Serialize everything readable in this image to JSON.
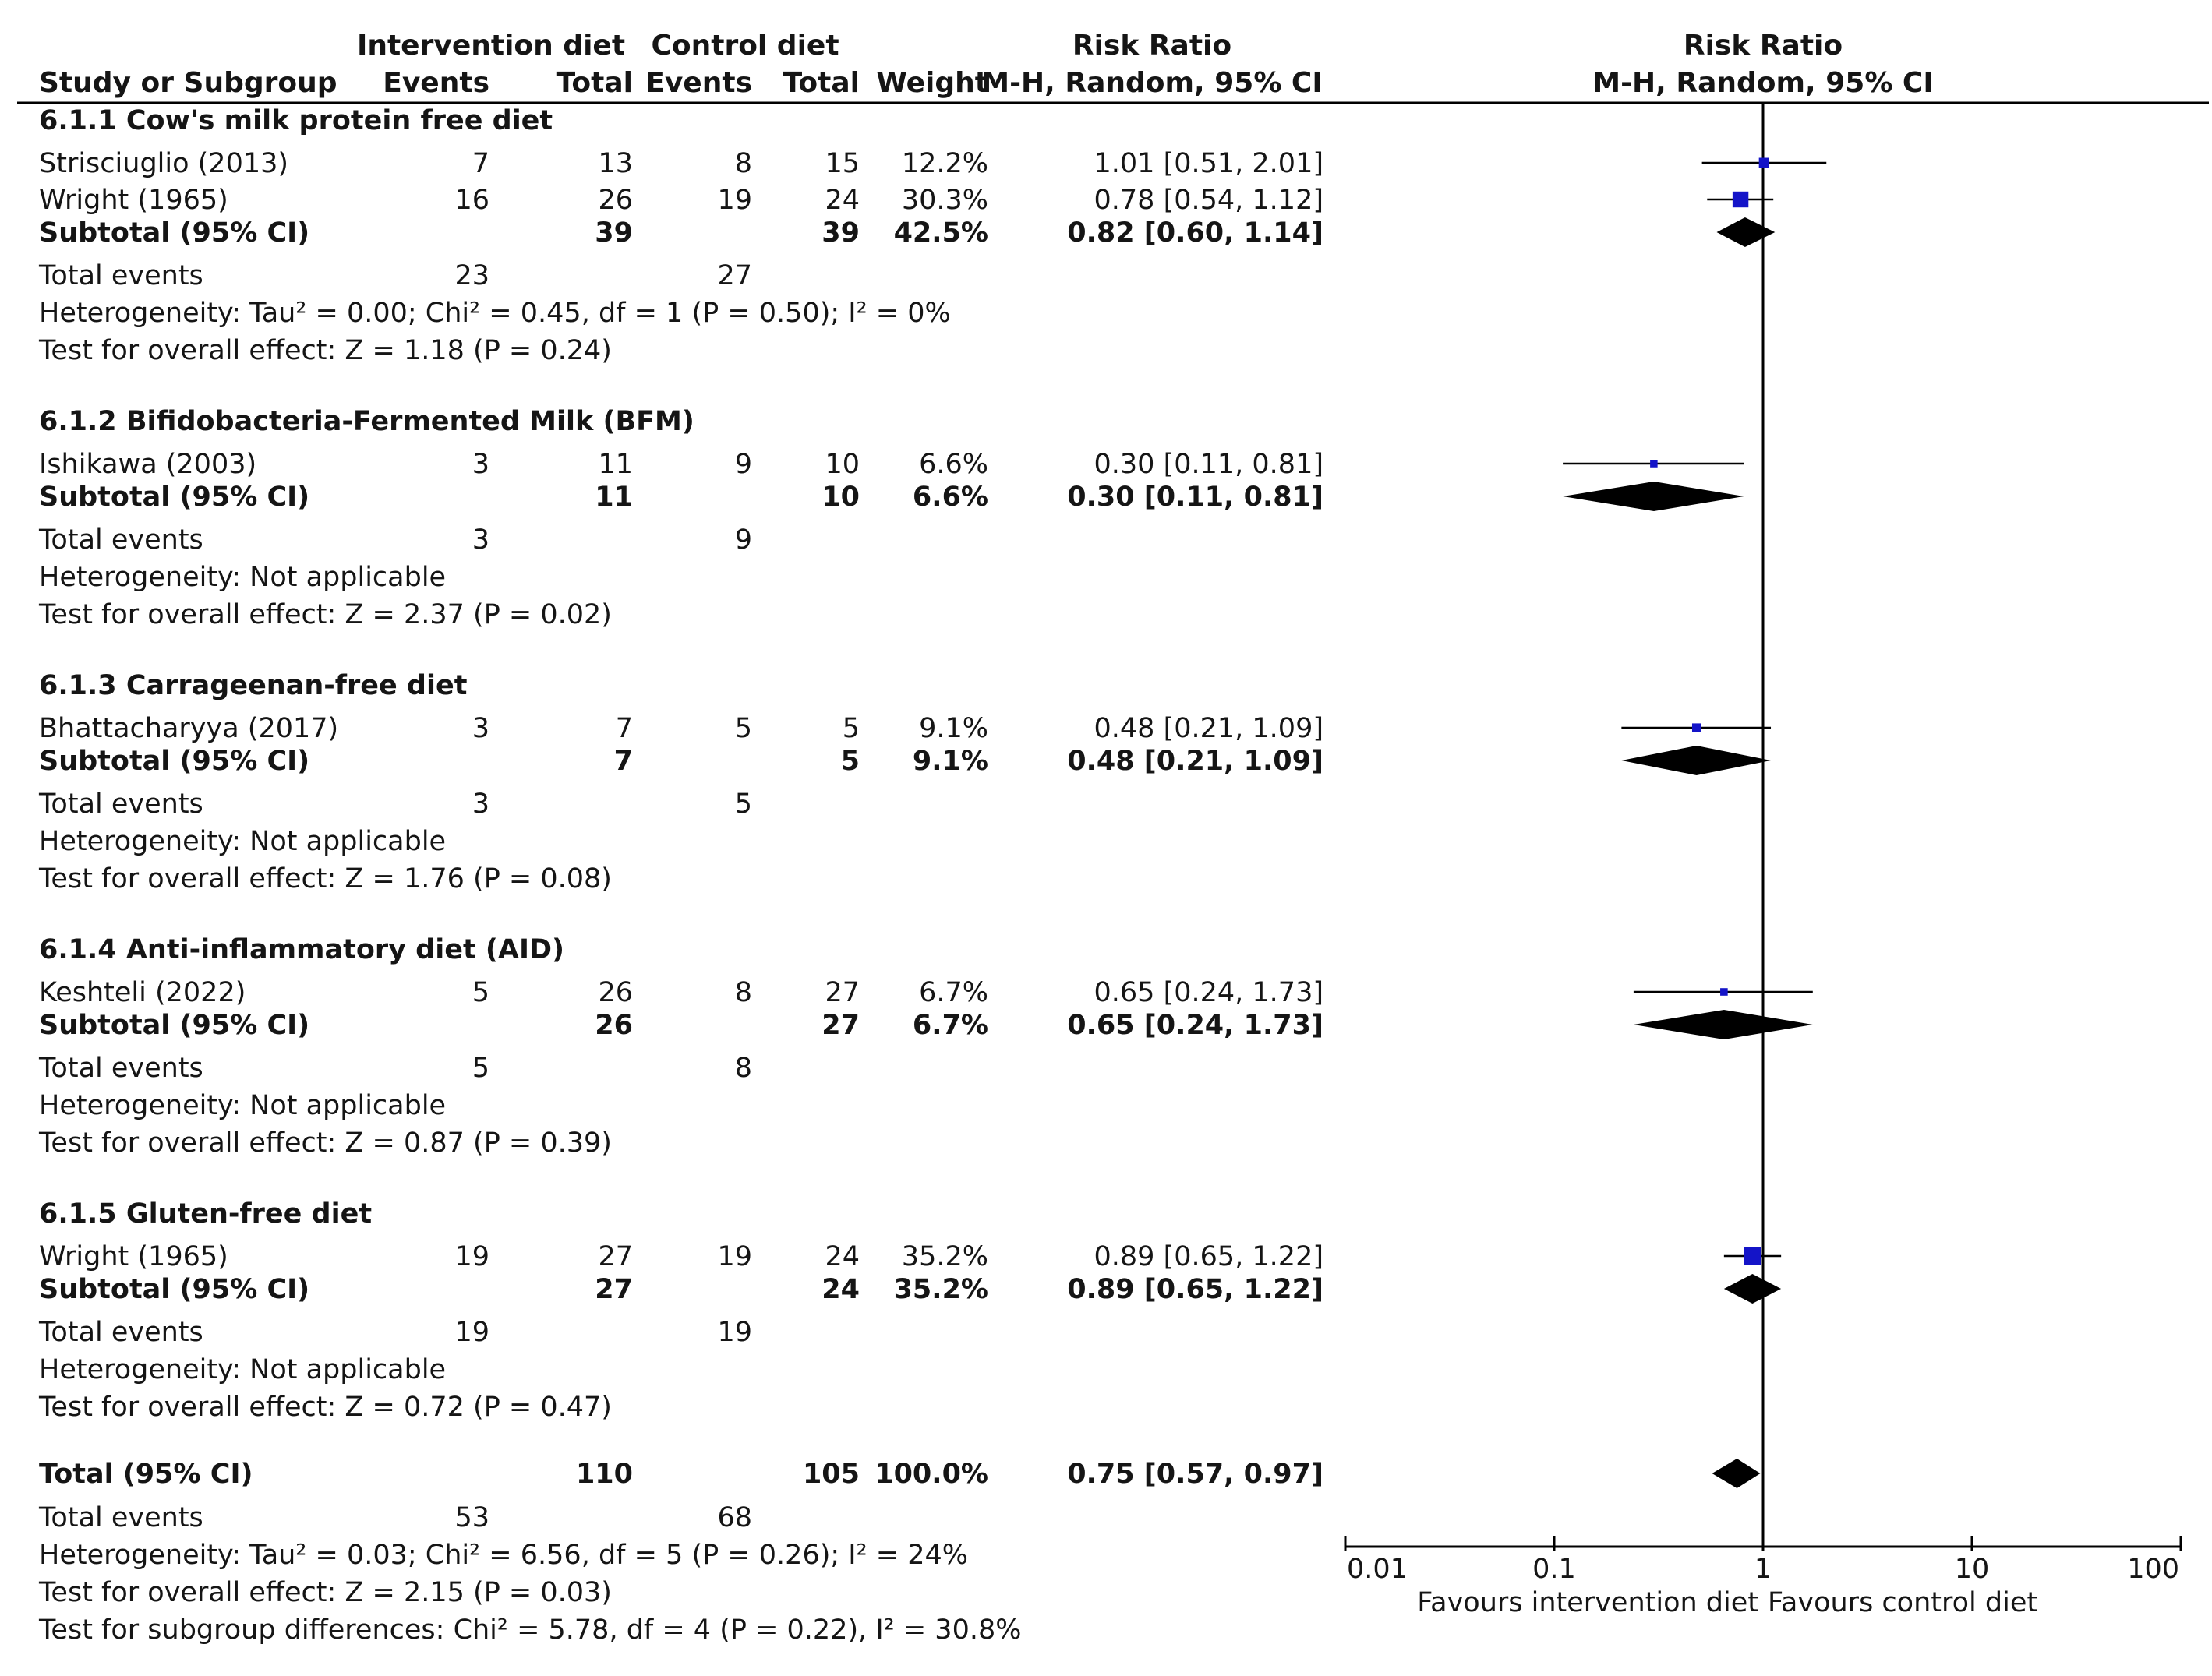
{
  "chart_data": {
    "type": "forest",
    "x_scale": "log",
    "xlim": [
      0.01,
      100
    ],
    "xticks": [
      0.01,
      0.1,
      1,
      10,
      100
    ],
    "xtick_labels": [
      "0.01",
      "0.1",
      "1",
      "10",
      "100"
    ],
    "reference_line": 1,
    "headers": {
      "group_intervention": "Intervention diet",
      "group_control": "Control diet",
      "study": "Study or Subgroup",
      "events": "Events",
      "total": "Total",
      "weight": "Weight",
      "rr": "Risk Ratio",
      "rr_method": "M-H, Random, 95% CI",
      "plot_title": "Risk Ratio",
      "plot_method": "M-H, Random, 95% CI"
    },
    "favours_left": "Favours intervention diet",
    "favours_right": "Favours control diet",
    "subgroups": [
      {
        "title": "6.1.1 Cow's milk protein free diet",
        "studies": [
          {
            "name": "Strisciuglio (2013)",
            "int_events": "7",
            "int_total": "13",
            "ctl_events": "8",
            "ctl_total": "15",
            "weight": "12.2%",
            "ci_text": "1.01 [0.51, 2.01]",
            "rr": 1.01,
            "lo": 0.51,
            "hi": 2.01,
            "w": 12.2
          },
          {
            "name": "Wright (1965)",
            "int_events": "16",
            "int_total": "26",
            "ctl_events": "19",
            "ctl_total": "24",
            "weight": "30.3%",
            "ci_text": "0.78 [0.54, 1.12]",
            "rr": 0.78,
            "lo": 0.54,
            "hi": 1.12,
            "w": 30.3
          }
        ],
        "subtotal": {
          "label": "Subtotal (95% CI)",
          "int_total": "39",
          "ctl_total": "39",
          "weight": "42.5%",
          "ci_text": "0.82 [0.60, 1.14]",
          "rr": 0.82,
          "lo": 0.6,
          "hi": 1.14
        },
        "total_events": {
          "label": "Total events",
          "int": "23",
          "ctl": "27"
        },
        "heterogeneity": "Heterogeneity: Tau² = 0.00; Chi² = 0.45, df = 1 (P = 0.50); I² = 0%",
        "overall": "Test for overall effect: Z = 1.18 (P = 0.24)"
      },
      {
        "title": "6.1.2 Bifidobacteria-Fermented Milk (BFM)",
        "studies": [
          {
            "name": "Ishikawa (2003)",
            "int_events": "3",
            "int_total": "11",
            "ctl_events": "9",
            "ctl_total": "10",
            "weight": "6.6%",
            "ci_text": "0.30 [0.11, 0.81]",
            "rr": 0.3,
            "lo": 0.11,
            "hi": 0.81,
            "w": 6.6
          }
        ],
        "subtotal": {
          "label": "Subtotal (95% CI)",
          "int_total": "11",
          "ctl_total": "10",
          "weight": "6.6%",
          "ci_text": "0.30 [0.11, 0.81]",
          "rr": 0.3,
          "lo": 0.11,
          "hi": 0.81
        },
        "total_events": {
          "label": "Total events",
          "int": "3",
          "ctl": "9"
        },
        "heterogeneity": "Heterogeneity: Not applicable",
        "overall": "Test for overall effect: Z = 2.37 (P = 0.02)"
      },
      {
        "title": "6.1.3 Carrageenan-free diet",
        "studies": [
          {
            "name": "Bhattacharyya (2017)",
            "int_events": "3",
            "int_total": "7",
            "ctl_events": "5",
            "ctl_total": "5",
            "weight": "9.1%",
            "ci_text": "0.48 [0.21, 1.09]",
            "rr": 0.48,
            "lo": 0.21,
            "hi": 1.09,
            "w": 9.1
          }
        ],
        "subtotal": {
          "label": "Subtotal (95% CI)",
          "int_total": "7",
          "ctl_total": "5",
          "weight": "9.1%",
          "ci_text": "0.48 [0.21, 1.09]",
          "rr": 0.48,
          "lo": 0.21,
          "hi": 1.09
        },
        "total_events": {
          "label": "Total events",
          "int": "3",
          "ctl": "5"
        },
        "heterogeneity": "Heterogeneity: Not applicable",
        "overall": "Test for overall effect: Z = 1.76 (P = 0.08)"
      },
      {
        "title": "6.1.4 Anti-inflammatory diet (AID)",
        "studies": [
          {
            "name": "Keshteli (2022)",
            "int_events": "5",
            "int_total": "26",
            "ctl_events": "8",
            "ctl_total": "27",
            "weight": "6.7%",
            "ci_text": "0.65 [0.24, 1.73]",
            "rr": 0.65,
            "lo": 0.24,
            "hi": 1.73,
            "w": 6.7
          }
        ],
        "subtotal": {
          "label": "Subtotal (95% CI)",
          "int_total": "26",
          "ctl_total": "27",
          "weight": "6.7%",
          "ci_text": "0.65 [0.24, 1.73]",
          "rr": 0.65,
          "lo": 0.24,
          "hi": 1.73
        },
        "total_events": {
          "label": "Total events",
          "int": "5",
          "ctl": "8"
        },
        "heterogeneity": "Heterogeneity: Not applicable",
        "overall": "Test for overall effect: Z = 0.87 (P = 0.39)"
      },
      {
        "title": "6.1.5 Gluten-free diet",
        "studies": [
          {
            "name": "Wright (1965)",
            "int_events": "19",
            "int_total": "27",
            "ctl_events": "19",
            "ctl_total": "24",
            "weight": "35.2%",
            "ci_text": "0.89 [0.65, 1.22]",
            "rr": 0.89,
            "lo": 0.65,
            "hi": 1.22,
            "w": 35.2
          }
        ],
        "subtotal": {
          "label": "Subtotal (95% CI)",
          "int_total": "27",
          "ctl_total": "24",
          "weight": "35.2%",
          "ci_text": "0.89 [0.65, 1.22]",
          "rr": 0.89,
          "lo": 0.65,
          "hi": 1.22
        },
        "total_events": {
          "label": "Total events",
          "int": "19",
          "ctl": "19"
        },
        "heterogeneity": "Heterogeneity: Not applicable",
        "overall": "Test for overall effect: Z = 0.72 (P = 0.47)"
      }
    ],
    "total": {
      "label": "Total (95% CI)",
      "int_total": "110",
      "ctl_total": "105",
      "weight": "100.0%",
      "ci_text": "0.75 [0.57, 0.97]",
      "rr": 0.75,
      "lo": 0.57,
      "hi": 0.97
    },
    "total_events": {
      "label": "Total events",
      "int": "53",
      "ctl": "68"
    },
    "heterogeneity": "Heterogeneity: Tau² = 0.03; Chi² = 6.56, df = 5 (P = 0.26); I² = 24%",
    "overall": "Test for overall effect: Z = 2.15 (P = 0.03)",
    "subgroup_diff": "Test for subgroup differences: Chi² = 5.78, df = 4 (P = 0.22), I² = 30.8%",
    "colors": {
      "study_marker": "#1414c8",
      "diamond": "#000000",
      "line": "#000000",
      "text": "#151515"
    }
  }
}
